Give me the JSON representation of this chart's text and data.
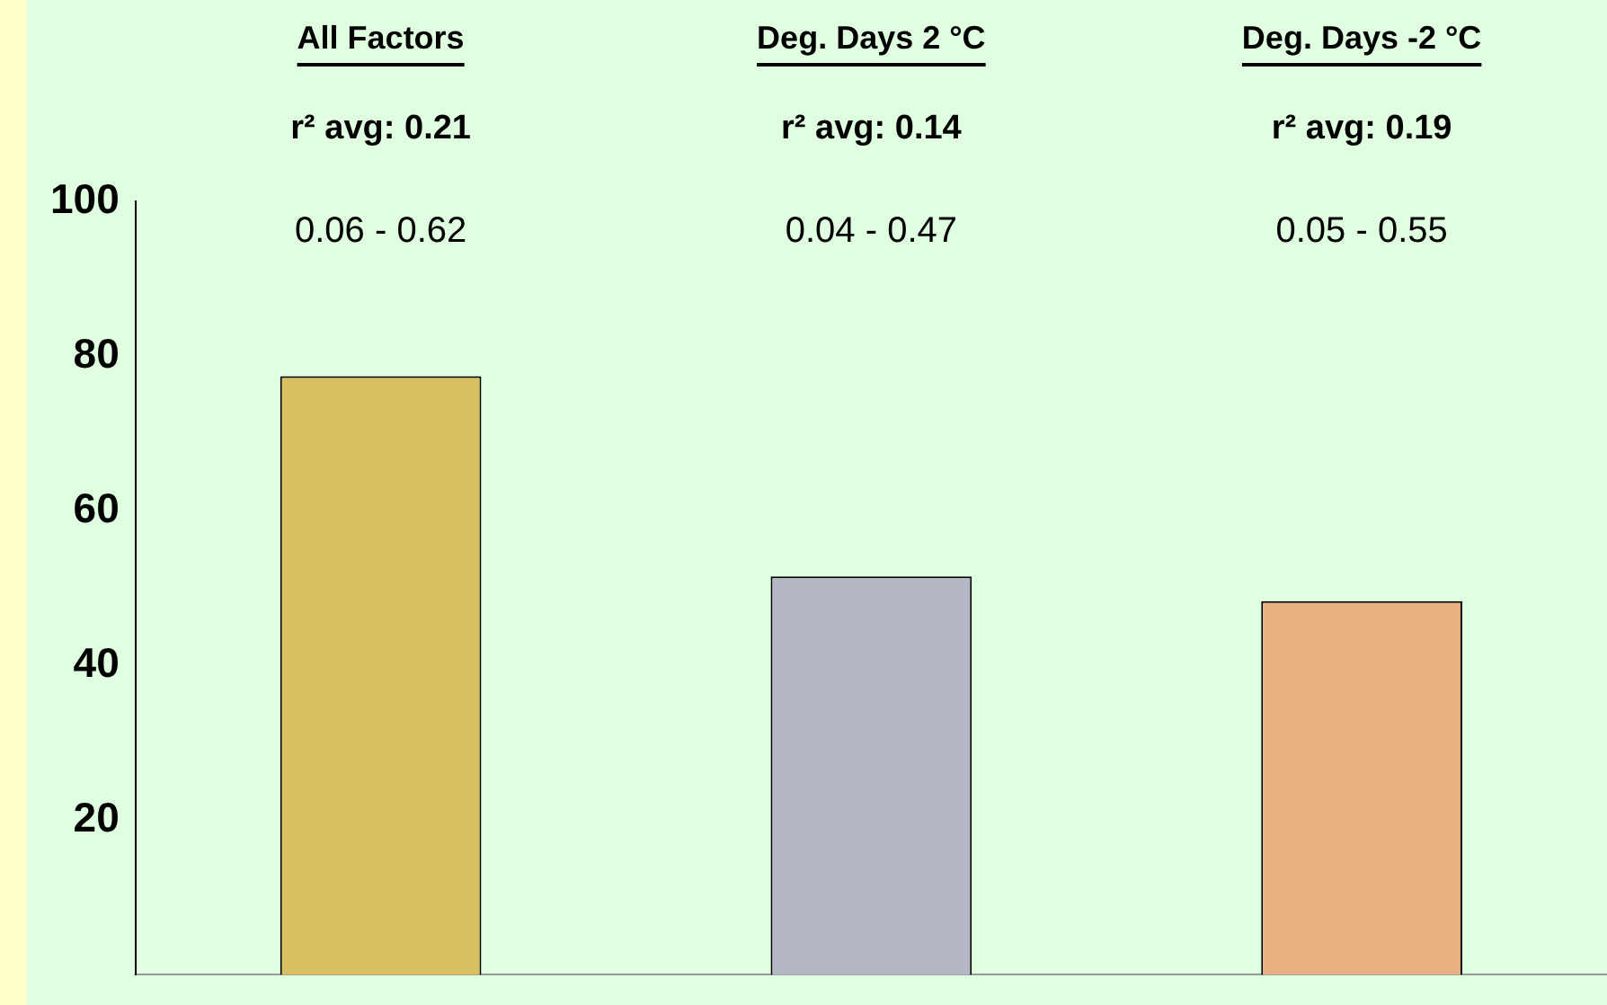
{
  "chart_data": {
    "type": "bar",
    "categories": [
      "All Factors",
      "Deg. Days 2 °C",
      "Deg. Days -2 °C"
    ],
    "values": [
      77.4,
      51.5,
      48.3
    ],
    "colors": [
      "#d8c060",
      "#b4b8c4",
      "#e8b080"
    ],
    "ylim": [
      0,
      100
    ],
    "yticks": [
      20,
      40,
      60,
      80,
      100
    ],
    "grid": false,
    "legend": false,
    "annotations": [
      "r² avg: 0.21",
      "r² avg: 0.14",
      "r² avg: 0.19",
      "0.06 - 0.62",
      "0.04 - 0.47",
      "0.05 - 0.55"
    ]
  }
}
